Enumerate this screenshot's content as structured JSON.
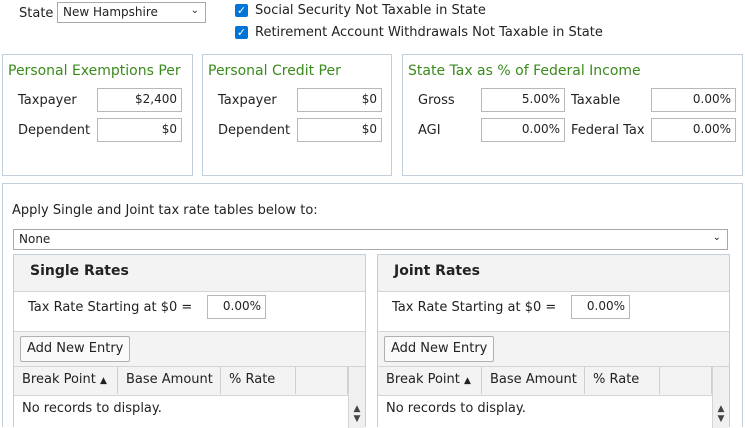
{
  "state": {
    "label": "State",
    "value": "New Hampshire"
  },
  "checks": [
    {
      "label": "Social Security Not Taxable in State",
      "checked": true
    },
    {
      "label": "Retirement Account Withdrawals Not Taxable in State",
      "checked": true
    }
  ],
  "exemptions": {
    "title": "Personal Exemptions Per",
    "taxpayer_label": "Taxpayer",
    "taxpayer_value": "$2,400",
    "dependent_label": "Dependent",
    "dependent_value": "$0"
  },
  "credit": {
    "title": "Personal Credit Per",
    "taxpayer_label": "Taxpayer",
    "taxpayer_value": "$0",
    "dependent_label": "Dependent",
    "dependent_value": "$0"
  },
  "state_tax": {
    "title": "State Tax as % of Federal Income",
    "gross_label": "Gross",
    "gross_value": "5.00%",
    "taxable_label": "Taxable",
    "taxable_value": "0.00%",
    "agi_label": "AGI",
    "agi_value": "0.00%",
    "federal_label": "Federal Tax",
    "federal_value": "0.00%"
  },
  "apply": {
    "label": "Apply Single and Joint tax rate tables below to:",
    "value": "None"
  },
  "single": {
    "title": "Single Rates",
    "start_label": "Tax Rate Starting at $0 =",
    "start_value": "0.00%",
    "add_label": "Add New Entry",
    "col_break": "Break Point",
    "col_base": "Base Amount",
    "col_rate": "% Rate",
    "empty": "No records to display."
  },
  "joint": {
    "title": "Joint Rates",
    "start_label": "Tax Rate Starting at $0 =",
    "start_value": "0.00%",
    "add_label": "Add New Entry",
    "col_break": "Break Point",
    "col_base": "Base Amount",
    "col_rate": "% Rate",
    "empty": "No records to display."
  },
  "icons": {
    "check": "✓",
    "chevron": "⌄",
    "sort_up": "▲",
    "scroll_up": "▲",
    "scroll_down": "▼"
  }
}
